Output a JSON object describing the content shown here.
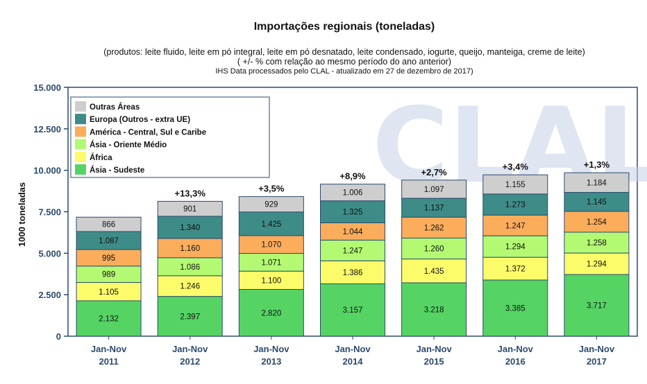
{
  "chart_data": {
    "type": "bar",
    "stacked": true,
    "title": "Importações regionais (toneladas)",
    "subtitle_lines": [
      "(produtos: leite fluido, leite em pó integral, leite em pó desnatado, leite condensado, iogurte, queijo, manteiga, creme de leite)",
      "( +/- % com relação ao mesmo período do ano anterior)",
      "IHS Data processados pelo CLAL - atualizado em 27 de dezembro de 2017)"
    ],
    "ylabel": "1000 toneladas",
    "ylim": [
      0,
      15000
    ],
    "yticks": [
      "0",
      "2.500",
      "5.000",
      "7.500",
      "10.000",
      "12.500",
      "15.000"
    ],
    "ytick_values": [
      0,
      2500,
      5000,
      7500,
      10000,
      12500,
      15000
    ],
    "categories": [
      [
        "Jan-Nov",
        "2011"
      ],
      [
        "Jan-Nov",
        "2012"
      ],
      [
        "Jan-Nov",
        "2013"
      ],
      [
        "Jan-Nov",
        "2014"
      ],
      [
        "Jan-Nov",
        "2015"
      ],
      [
        "Jan-Nov",
        "2016"
      ],
      [
        "Jan-Nov",
        "2017"
      ]
    ],
    "series": [
      {
        "name": "Ásia - Sudeste",
        "color": "#55d464",
        "values": [
          2132,
          2397,
          2820,
          3157,
          3218,
          3385,
          3717
        ],
        "labels": [
          "2.132",
          "2.397",
          "2.820",
          "3.157",
          "3.218",
          "3.385",
          "3.717"
        ]
      },
      {
        "name": "África",
        "color": "#fcfc6a",
        "values": [
          1105,
          1246,
          1100,
          1386,
          1435,
          1372,
          1294
        ],
        "labels": [
          "1.105",
          "1.246",
          "1.100",
          "1.386",
          "1.435",
          "1.372",
          "1.294"
        ]
      },
      {
        "name": "Ásia - Oriente Médio",
        "color": "#b3fa72",
        "values": [
          989,
          1086,
          1071,
          1247,
          1260,
          1294,
          1258
        ],
        "labels": [
          "989",
          "1.086",
          "1.071",
          "1.247",
          "1.260",
          "1.294",
          "1.258"
        ]
      },
      {
        "name": "América - Central, Sul e Caribe",
        "color": "#fbad5c",
        "values": [
          995,
          1160,
          1070,
          1044,
          1262,
          1247,
          1254
        ],
        "labels": [
          "995",
          "1.160",
          "1.070",
          "1.044",
          "1.262",
          "1.247",
          "1.254"
        ]
      },
      {
        "name": "Europa (Outros - extra UE)",
        "color": "#3e8c87",
        "values": [
          1087,
          1340,
          1425,
          1325,
          1137,
          1273,
          1145
        ],
        "labels": [
          "1.087",
          "1.340",
          "1.425",
          "1.325",
          "1.137",
          "1.273",
          "1.145"
        ]
      },
      {
        "name": "Outras Áreas",
        "color": "#cecece",
        "values": [
          866,
          901,
          929,
          1006,
          1097,
          1155,
          1184
        ],
        "labels": [
          "866",
          "901",
          "929",
          "1.006",
          "1.097",
          "1.155",
          "1.184"
        ]
      }
    ],
    "change_labels": [
      "",
      "+13,3%",
      "+3,5%",
      "+8,9%",
      "+2,7%",
      "+3,4%",
      "+1,3%"
    ],
    "legend": {
      "placement": "top-left",
      "order": [
        "Outras Áreas",
        "Europa (Outros - extra UE)",
        "América - Central, Sul e Caribe",
        "Ásia - Oriente Médio",
        "África",
        "Ásia - Sudeste"
      ]
    },
    "watermark": "CLAL",
    "grid": false
  }
}
